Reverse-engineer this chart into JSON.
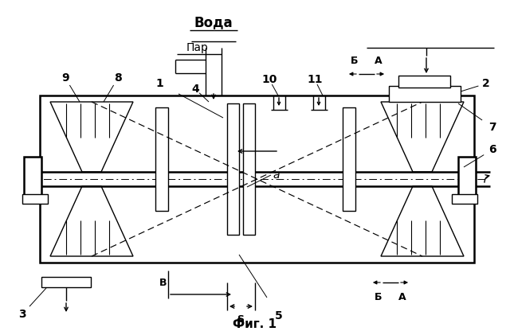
{
  "fig_width": 6.4,
  "fig_height": 4.21,
  "dpi": 100,
  "bg_color": "#ffffff",
  "title_text": "Фиг. 1",
  "label_voda": "Вода",
  "label_par": "Пар"
}
